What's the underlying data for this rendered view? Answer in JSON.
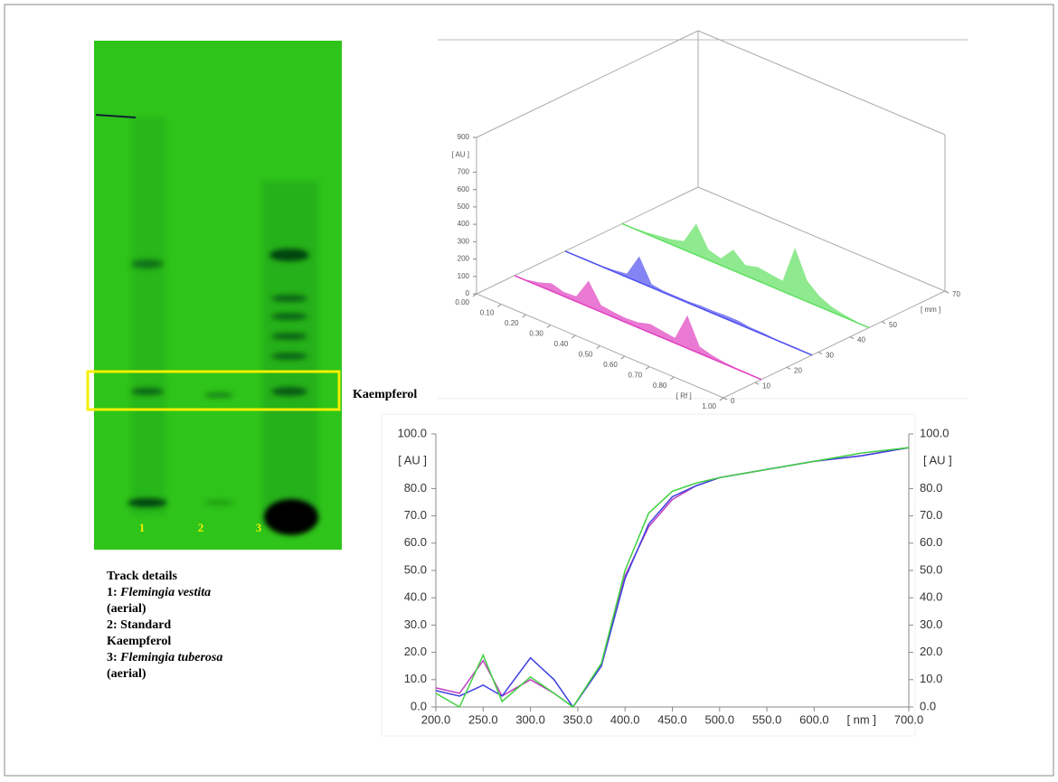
{
  "plate": {
    "lanes": [
      "1",
      "2",
      "3"
    ],
    "band_label": "Kaempferol"
  },
  "track_details": {
    "title": "Track details",
    "items": [
      {
        "number": "1:",
        "name": "Flemingia vestita",
        "note": "(aerial)"
      },
      {
        "number": "2:",
        "name": "Standard",
        "note": "Kaempferol"
      },
      {
        "number": "3:",
        "name": "Flemingia tuberosa",
        "note": "(aerial)"
      }
    ]
  },
  "chart_data": [
    {
      "type": "densitogram3d",
      "x_label": "[ Rf ]",
      "y_label": "[ mm ]",
      "z_label": "[ AU ]",
      "xlim": [
        0,
        1
      ],
      "ylim": [
        0,
        70
      ],
      "zlim": [
        0,
        900
      ],
      "xticks": [
        {
          "value": 0,
          "label": "0.00"
        },
        {
          "value": 0.1,
          "label": "0.10"
        },
        {
          "value": 0.2,
          "label": "0.20"
        },
        {
          "value": 0.3,
          "label": "0.30"
        },
        {
          "value": 0.4,
          "label": "0.40"
        },
        {
          "value": 0.5,
          "label": "0.50"
        },
        {
          "value": 0.6,
          "label": "0.60"
        },
        {
          "value": 0.7,
          "label": "0.70"
        },
        {
          "value": 0.8,
          "label": "0.80"
        },
        {
          "value": 1,
          "label": "1.00"
        }
      ],
      "yticks": [
        0,
        10,
        20,
        30,
        40,
        50,
        70
      ],
      "zticks": [
        0,
        100,
        200,
        300,
        400,
        500,
        600,
        700,
        900
      ],
      "x": [
        0.05,
        0.1,
        0.15,
        0.2,
        0.25,
        0.3,
        0.35,
        0.4,
        0.45,
        0.5,
        0.55,
        0.6,
        0.65,
        0.7,
        0.75,
        0.8,
        0.85,
        0.9,
        0.95
      ],
      "series": [
        {
          "color": "#e040c0",
          "mm": 12,
          "values": [
            5,
            20,
            45,
            25,
            30,
            150,
            40,
            30,
            25,
            30,
            50,
            40,
            30,
            190,
            40,
            20,
            10,
            5,
            5
          ]
        },
        {
          "color": "#5050f0",
          "mm": 28,
          "values": [
            5,
            5,
            5,
            10,
            20,
            150,
            20,
            10,
            10,
            10,
            15,
            15,
            20,
            20,
            10,
            10,
            5,
            5,
            5
          ]
        },
        {
          "color": "#60e060",
          "mm": 46,
          "values": [
            5,
            10,
            20,
            30,
            50,
            180,
            60,
            40,
            120,
            60,
            80,
            70,
            60,
            280,
            120,
            60,
            30,
            15,
            5
          ]
        }
      ]
    },
    {
      "type": "line",
      "x_label": "[ nm ]",
      "y_label": "[ AU ]",
      "y2_label": "[ AU ]",
      "xlim": [
        200,
        700
      ],
      "ylim": [
        0,
        100
      ],
      "y2lim": [
        0,
        100
      ],
      "xticks": [
        {
          "value": 200,
          "label": "200.0"
        },
        {
          "value": 250,
          "label": "250.0"
        },
        {
          "value": 300,
          "label": "300.0"
        },
        {
          "value": 350,
          "label": "350.0"
        },
        {
          "value": 400,
          "label": "400.0"
        },
        {
          "value": 450,
          "label": "450.0"
        },
        {
          "value": 500,
          "label": "500.0"
        },
        {
          "value": 550,
          "label": "550.0"
        },
        {
          "value": 600,
          "label": "600.0"
        },
        {
          "value": 700,
          "label": "700.0"
        }
      ],
      "yticks": [
        {
          "value": 0,
          "label": "0.0"
        },
        {
          "value": 10,
          "label": "10.0"
        },
        {
          "value": 20,
          "label": "20.0"
        },
        {
          "value": 30,
          "label": "30.0"
        },
        {
          "value": 40,
          "label": "40.0"
        },
        {
          "value": 50,
          "label": "50.0"
        },
        {
          "value": 60,
          "label": "60.0"
        },
        {
          "value": 70,
          "label": "70.0"
        },
        {
          "value": 80,
          "label": "80.0"
        },
        {
          "value": 100,
          "label": "100.0"
        }
      ],
      "y2ticks": [
        {
          "value": 0,
          "label": "0.0"
        },
        {
          "value": 10,
          "label": "10.0"
        },
        {
          "value": 20,
          "label": "20.0"
        },
        {
          "value": 30,
          "label": "30.0"
        },
        {
          "value": 40,
          "label": "40.0"
        },
        {
          "value": 50,
          "label": "50.0"
        },
        {
          "value": 60,
          "label": "60.0"
        },
        {
          "value": 70,
          "label": "70.0"
        },
        {
          "value": 80,
          "label": "80.0"
        },
        {
          "value": 100,
          "label": "100.0"
        }
      ],
      "x": [
        200,
        225,
        250,
        270,
        300,
        325,
        345,
        375,
        400,
        425,
        450,
        475,
        500,
        550,
        600,
        650,
        700
      ],
      "series": [
        {
          "color": "#c040c0",
          "values": [
            7,
            5,
            17,
            4,
            10,
            5,
            0,
            15,
            48,
            66,
            76,
            81,
            84,
            87,
            90,
            92,
            95
          ]
        },
        {
          "color": "#4040e0",
          "values": [
            6,
            4,
            8,
            4,
            18,
            10,
            0,
            15,
            47,
            67,
            77,
            81,
            84,
            87,
            90,
            92,
            95
          ]
        },
        {
          "color": "#40d040",
          "values": [
            5,
            0,
            19,
            2,
            11,
            5,
            0,
            16,
            50,
            71,
            79,
            82,
            84,
            87,
            90,
            93,
            95
          ]
        }
      ]
    }
  ]
}
